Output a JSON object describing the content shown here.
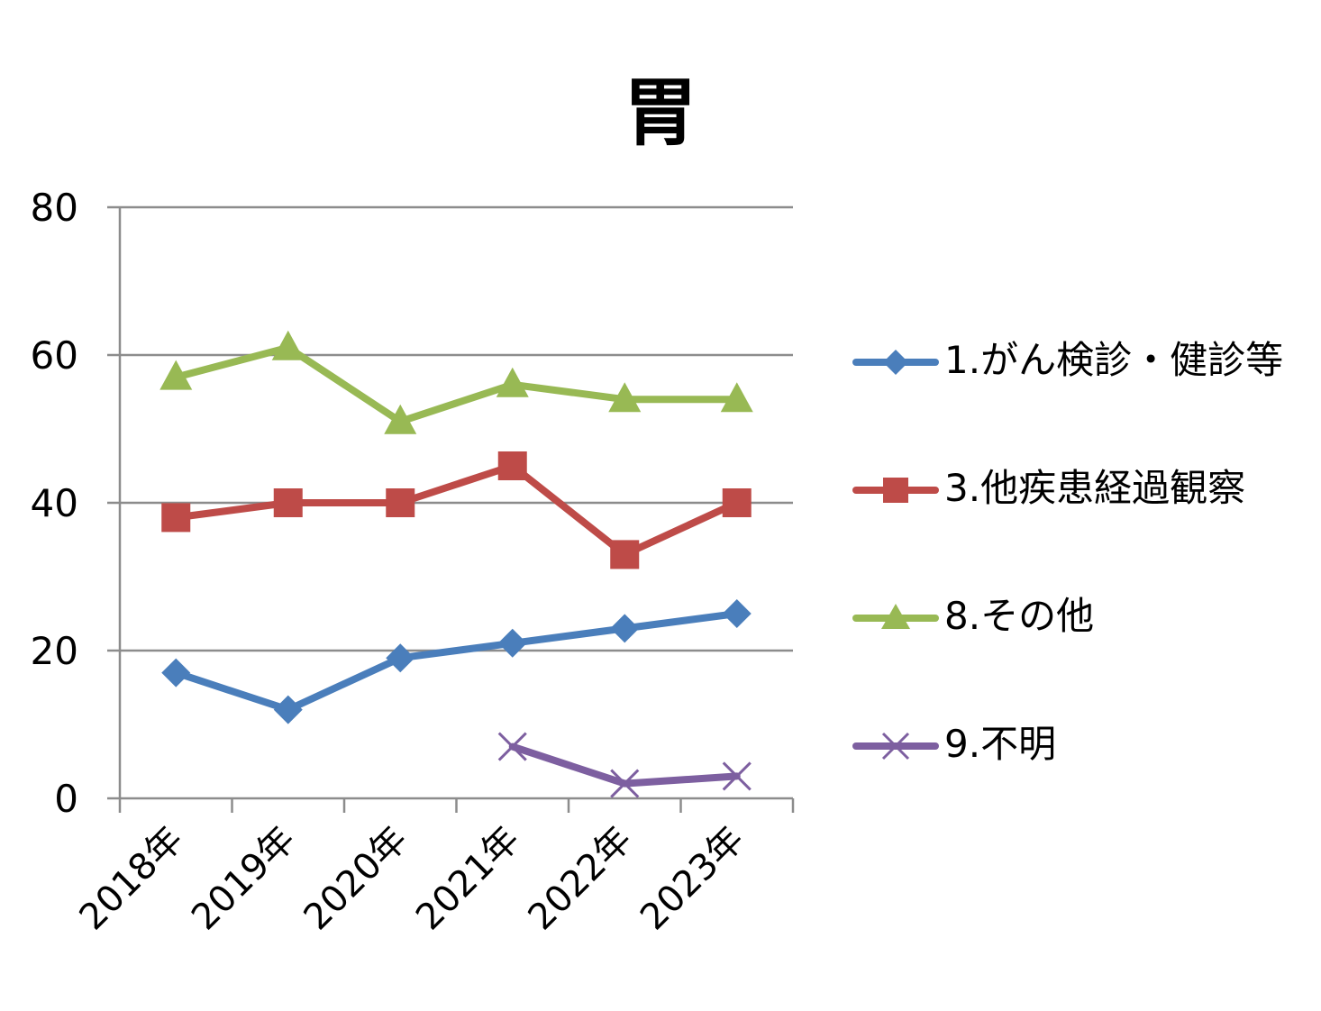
{
  "chart_data": {
    "type": "line",
    "title": "胃",
    "categories": [
      "2018年",
      "2019年",
      "2020年",
      "2021年",
      "2022年",
      "2023年"
    ],
    "ylim": [
      0,
      80
    ],
    "yticks": [
      0,
      20,
      40,
      60,
      80
    ],
    "grid": true,
    "legend_position": "right",
    "series": [
      {
        "name": "1.がん検診・健診等",
        "values": [
          17,
          12,
          19,
          21,
          23,
          25
        ],
        "color": "#4a7ebb",
        "marker": "diamond"
      },
      {
        "name": "3.他疾患経過観察",
        "values": [
          38,
          40,
          40,
          45,
          33,
          40
        ],
        "color": "#be4b48",
        "marker": "square"
      },
      {
        "name": "8.その他",
        "values": [
          57,
          61,
          51,
          56,
          54,
          54
        ],
        "color": "#98b954",
        "marker": "triangle"
      },
      {
        "name": "9.不明",
        "values": [
          null,
          null,
          null,
          7,
          2,
          3
        ],
        "color": "#7d5fa0",
        "marker": "x"
      }
    ]
  }
}
